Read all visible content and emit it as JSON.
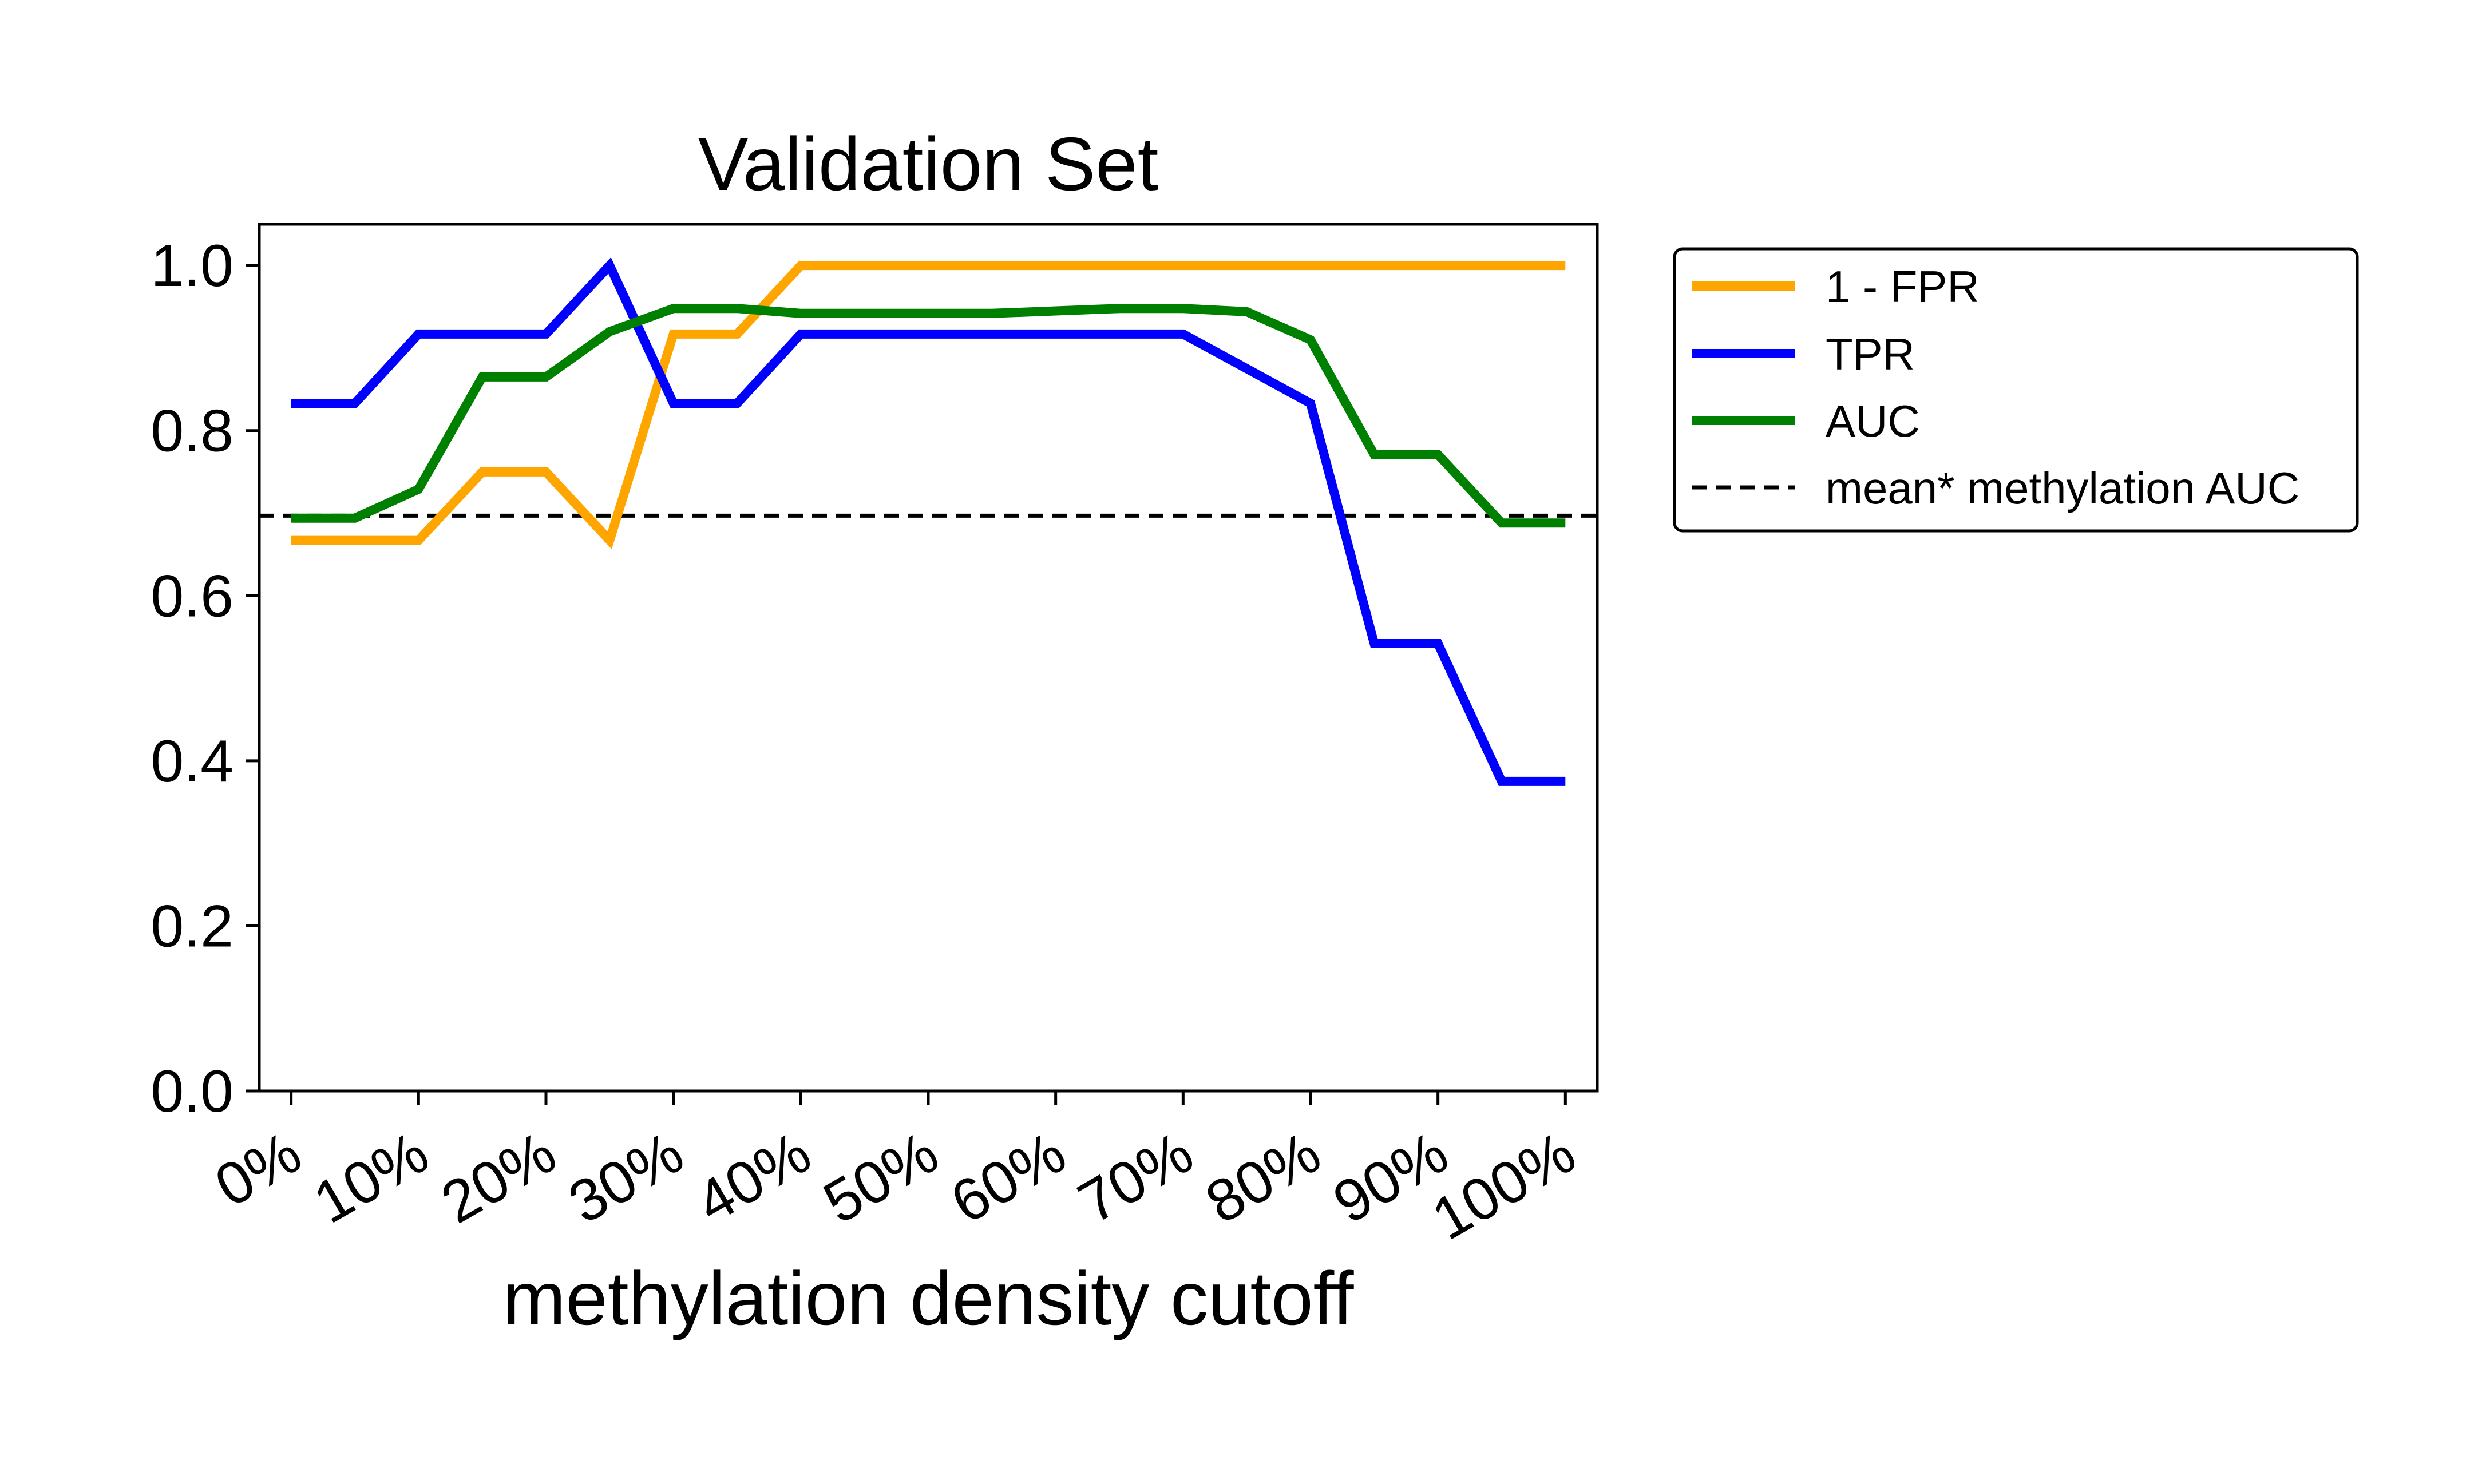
{
  "chart_data": {
    "type": "line",
    "title": "Validation Set",
    "xlabel": "methylation density cutoff",
    "ylabel": "",
    "xlim": [
      -2.5,
      102.5
    ],
    "ylim": [
      0,
      1.05
    ],
    "x": [
      0,
      5,
      10,
      15,
      20,
      25,
      30,
      35,
      40,
      45,
      50,
      55,
      60,
      65,
      70,
      75,
      80,
      85,
      90,
      95,
      100
    ],
    "xticks": [
      0,
      10,
      20,
      30,
      40,
      50,
      60,
      70,
      80,
      90,
      100
    ],
    "xtick_labels": [
      "0%",
      "10%",
      "20%",
      "30%",
      "40%",
      "50%",
      "60%",
      "70%",
      "80%",
      "90%",
      "100%"
    ],
    "yticks": [
      0.0,
      0.2,
      0.4,
      0.6,
      0.8,
      1.0
    ],
    "ytick_labels": [
      "0.0",
      "0.2",
      "0.4",
      "0.6",
      "0.8",
      "1.0"
    ],
    "series": [
      {
        "name": "1 - FPR",
        "color": "#FFA500",
        "values": [
          0.667,
          0.667,
          0.667,
          0.75,
          0.75,
          0.667,
          0.917,
          0.917,
          1.0,
          1.0,
          1.0,
          1.0,
          1.0,
          1.0,
          1.0,
          1.0,
          1.0,
          1.0,
          1.0,
          1.0,
          1.0
        ]
      },
      {
        "name": "TPR",
        "color": "#0000FF",
        "values": [
          0.833,
          0.833,
          0.917,
          0.917,
          0.917,
          1.0,
          0.833,
          0.833,
          0.917,
          0.917,
          0.917,
          0.917,
          0.917,
          0.917,
          0.917,
          0.875,
          0.833,
          0.542,
          0.542,
          0.375,
          0.375
        ]
      },
      {
        "name": "AUC",
        "color": "#008000",
        "values": [
          0.694,
          0.694,
          0.729,
          0.865,
          0.865,
          0.92,
          0.948,
          0.948,
          0.942,
          0.942,
          0.942,
          0.942,
          0.945,
          0.948,
          0.948,
          0.944,
          0.91,
          0.771,
          0.771,
          0.688,
          0.688
        ]
      }
    ],
    "reference_line": {
      "name": "mean* methylation AUC",
      "value": 0.697,
      "color": "#000000",
      "style": "dashed"
    },
    "legend": {
      "placement": "outside-top-right",
      "entries": [
        "1 - FPR",
        "TPR",
        "AUC",
        "mean* methylation AUC"
      ]
    },
    "grid": false
  }
}
